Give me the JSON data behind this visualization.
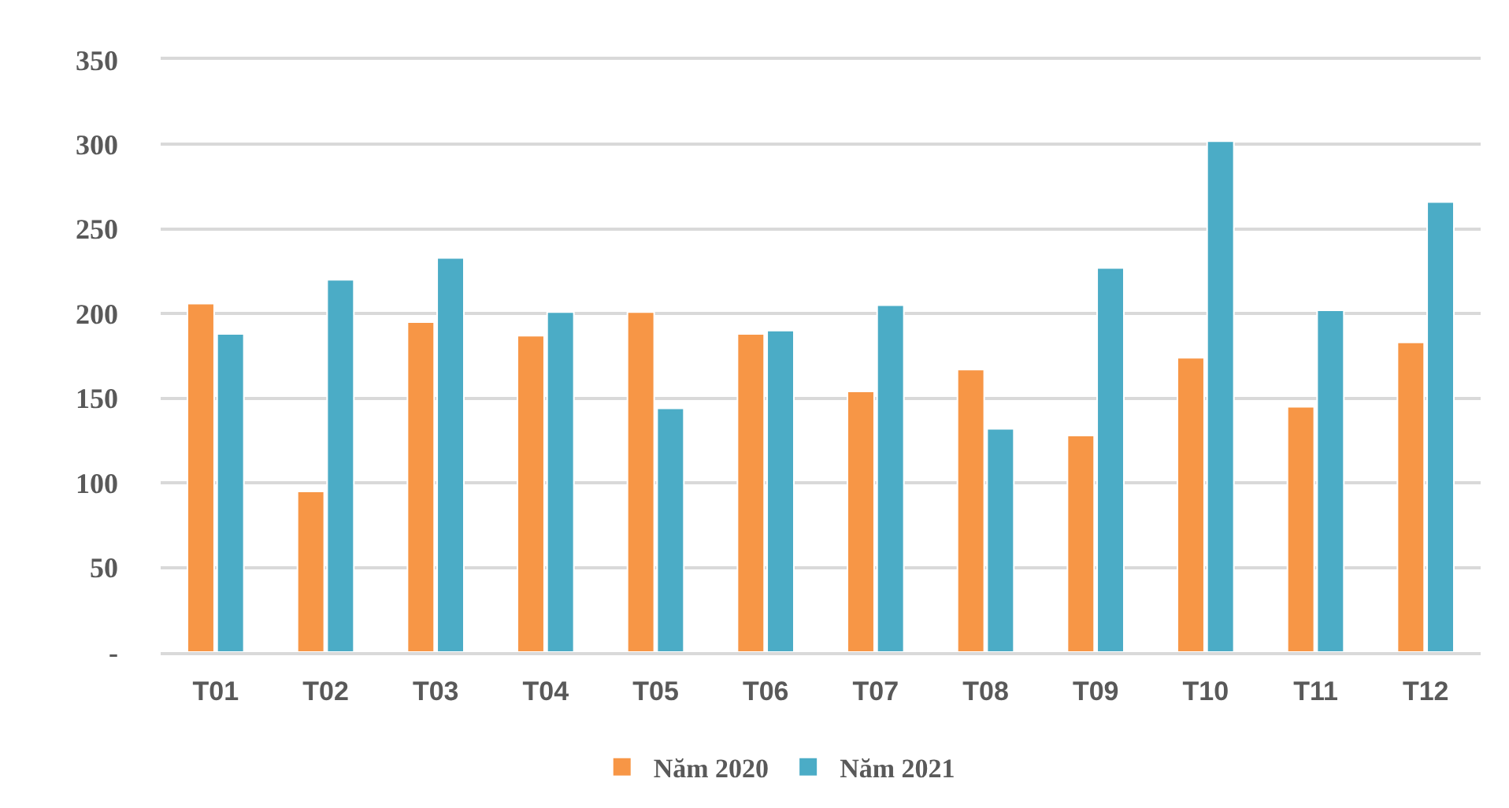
{
  "chart_data": {
    "type": "bar",
    "categories": [
      "T01",
      "T02",
      "T03",
      "T04",
      "T05",
      "T06",
      "T07",
      "T08",
      "T09",
      "T10",
      "T11",
      "T12"
    ],
    "series": [
      {
        "name": "Năm 2020",
        "color": "#f79646",
        "values": [
          206,
          95,
          195,
          187,
          201,
          188,
          154,
          167,
          128,
          174,
          145,
          183
        ]
      },
      {
        "name": "Năm 2021",
        "color": "#4bacc6",
        "values": [
          188,
          220,
          233,
          201,
          144,
          190,
          205,
          132,
          227,
          302,
          202,
          266
        ]
      }
    ],
    "ylim": [
      0,
      350
    ],
    "yticks": [
      {
        "value": 0,
        "label": "-"
      },
      50,
      100,
      150,
      200,
      250,
      300,
      350
    ],
    "grid": "y",
    "legend": "bottom"
  }
}
